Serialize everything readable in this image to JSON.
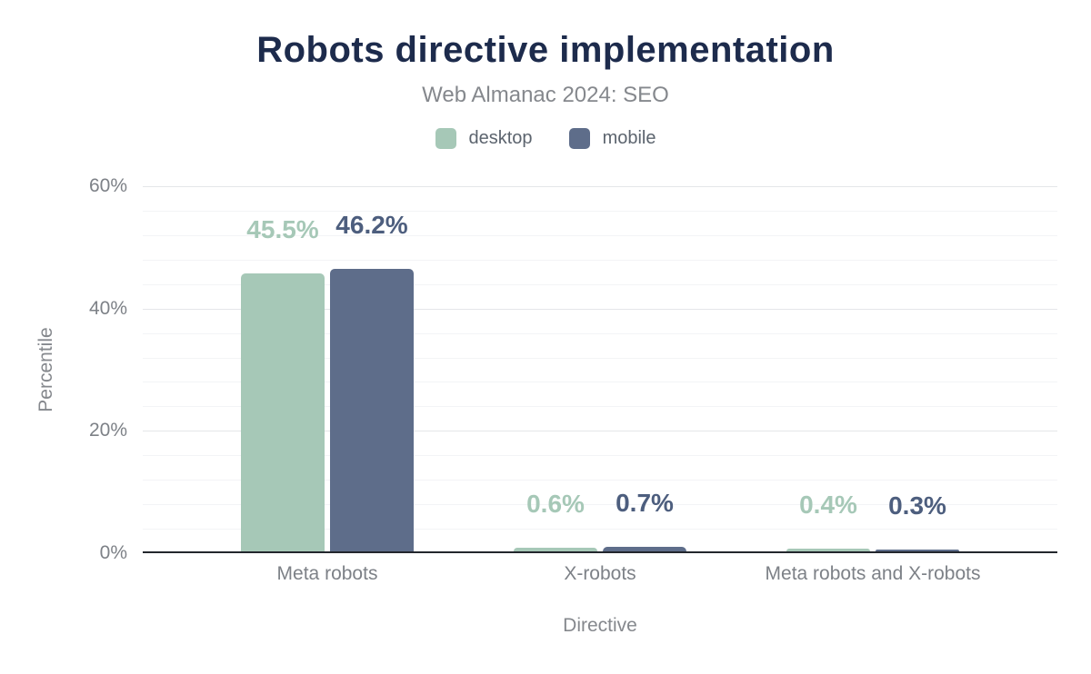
{
  "chart_data": {
    "type": "bar",
    "title": "Robots directive implementation",
    "subtitle": "Web Almanac 2024: SEO",
    "xlabel": "Directive",
    "ylabel": "Percentile",
    "categories": [
      "Meta robots",
      "X-robots",
      "Meta robots and X-robots"
    ],
    "series": [
      {
        "name": "desktop",
        "color": "#a6c8b7",
        "label_color": "#a6c8b7",
        "values": [
          45.5,
          0.6,
          0.4
        ]
      },
      {
        "name": "mobile",
        "color": "#5e6d8a",
        "label_color": "#4d5e7e",
        "values": [
          46.2,
          0.7,
          0.3
        ]
      }
    ],
    "data_labels": [
      [
        "45.5%",
        "0.6%",
        "0.4%"
      ],
      [
        "46.2%",
        "0.7%",
        "0.3%"
      ]
    ],
    "value_suffix": "%",
    "ylim": [
      0,
      60
    ],
    "y_ticks": [
      "0%",
      "20%",
      "40%",
      "60%"
    ],
    "major_step": 20,
    "minor_step": 4,
    "grid": "on",
    "legend_position": "top",
    "style": {
      "title_color": "#1d2b4c",
      "subtitle_color": "#85888d",
      "axis_text_color": "#7d8187",
      "axis_line_color": "#23272d",
      "major_grid_color": "#e4e6e9",
      "minor_grid_color": "#f3f4f6",
      "background": "#ffffff"
    }
  }
}
